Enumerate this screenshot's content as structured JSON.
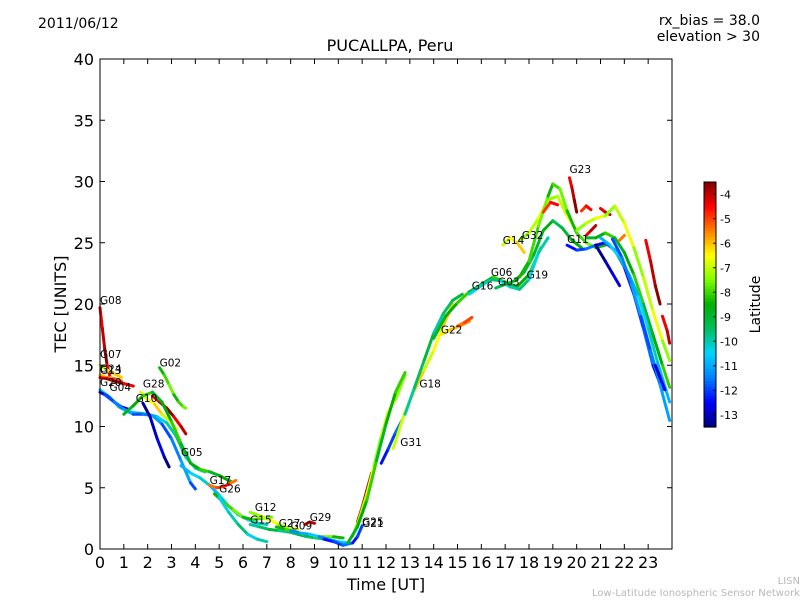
{
  "header": {
    "date": "2011/06/12",
    "rx_bias": "rx_bias = 38.0",
    "elevation": "elevation > 30"
  },
  "footer": {
    "line1": "LISN",
    "line2": "Low-Latitude Ionospheric Sensor Network"
  },
  "chart_data": {
    "type": "line",
    "title": "PUCALLPA, Peru",
    "xlabel": "Time [UT]",
    "ylabel": "TEC [UNITS]",
    "xlim": [
      0,
      24
    ],
    "ylim": [
      0,
      40
    ],
    "x_ticks": [
      "0",
      "1",
      "2",
      "3",
      "4",
      "5",
      "6",
      "7",
      "8",
      "9",
      "10",
      "11",
      "12",
      "13",
      "14",
      "15",
      "16",
      "17",
      "18",
      "19",
      "20",
      "21",
      "22",
      "23"
    ],
    "y_ticks": [
      "0",
      "5",
      "10",
      "15",
      "20",
      "25",
      "30",
      "35",
      "40"
    ],
    "colorbar": {
      "label": "Latitude",
      "range": [
        -13.5,
        -3.5
      ],
      "ticks": [
        "-4",
        "-5",
        "-6",
        "-7",
        "-8",
        "-9",
        "-10",
        "-11",
        "-12",
        "-13"
      ],
      "colors": [
        "#00007f",
        "#0000ff",
        "#0080ff",
        "#00d4ff",
        "#00c060",
        "#00b000",
        "#7fff00",
        "#ffff00",
        "#ff8000",
        "#ff0000",
        "#7f0000"
      ]
    },
    "satellite_labels": [
      {
        "name": "G08",
        "x": 0.0,
        "y": 20.0
      },
      {
        "name": "G07",
        "x": 0.0,
        "y": 15.6
      },
      {
        "name": "G24",
        "x": 0.0,
        "y": 14.4
      },
      {
        "name": "G13",
        "x": 0.0,
        "y": 14.3
      },
      {
        "name": "G20",
        "x": 0.0,
        "y": 13.3
      },
      {
        "name": "G04",
        "x": 0.4,
        "y": 12.9
      },
      {
        "name": "G28",
        "x": 1.8,
        "y": 13.2
      },
      {
        "name": "G10",
        "x": 1.5,
        "y": 12.0
      },
      {
        "name": "G02",
        "x": 2.5,
        "y": 14.9
      },
      {
        "name": "G05",
        "x": 3.4,
        "y": 7.6
      },
      {
        "name": "G17",
        "x": 4.6,
        "y": 5.3
      },
      {
        "name": "G26",
        "x": 5.0,
        "y": 4.6
      },
      {
        "name": "G12",
        "x": 6.5,
        "y": 3.1
      },
      {
        "name": "G15",
        "x": 6.3,
        "y": 2.1
      },
      {
        "name": "G27",
        "x": 7.5,
        "y": 1.8
      },
      {
        "name": "G09",
        "x": 8.0,
        "y": 1.6
      },
      {
        "name": "G29",
        "x": 8.8,
        "y": 2.3
      },
      {
        "name": "G25",
        "x": 11.0,
        "y": 1.9
      },
      {
        "name": "G21",
        "x": 11.0,
        "y": 1.8
      },
      {
        "name": "G31",
        "x": 12.6,
        "y": 8.4
      },
      {
        "name": "G18",
        "x": 13.4,
        "y": 13.2
      },
      {
        "name": "G22",
        "x": 14.3,
        "y": 17.6
      },
      {
        "name": "G16",
        "x": 15.6,
        "y": 21.2
      },
      {
        "name": "G06",
        "x": 16.4,
        "y": 22.3
      },
      {
        "name": "G03",
        "x": 16.7,
        "y": 21.5
      },
      {
        "name": "G14",
        "x": 16.9,
        "y": 24.9
      },
      {
        "name": "G32",
        "x": 17.7,
        "y": 25.3
      },
      {
        "name": "G19",
        "x": 17.9,
        "y": 22.1
      },
      {
        "name": "G11",
        "x": 19.6,
        "y": 25.0
      },
      {
        "name": "G23",
        "x": 19.7,
        "y": 30.7
      }
    ],
    "series": [
      {
        "name": "G08",
        "lat": -4.0,
        "x": [
          0.0,
          0.1,
          0.2,
          0.3,
          0.4
        ],
        "y": [
          19.7,
          18.0,
          16.3,
          15.0,
          14.2
        ]
      },
      {
        "name": "G07",
        "lat": -6.5,
        "x": [
          0.0,
          0.3,
          0.6,
          0.9
        ],
        "y": [
          15.0,
          14.6,
          14.3,
          14.0
        ]
      },
      {
        "name": "G24",
        "lat": -5.5,
        "x": [
          0.0,
          0.3,
          0.6,
          0.9
        ],
        "y": [
          14.2,
          14.0,
          13.9,
          13.7
        ]
      },
      {
        "name": "G13",
        "lat": -4.0,
        "x": [
          0.0,
          0.3,
          0.6,
          1.0,
          1.4
        ],
        "y": [
          14.0,
          13.9,
          13.7,
          13.5,
          13.3
        ]
      },
      {
        "name": "G20",
        "lat": -10.0,
        "x": [
          0.0,
          0.4,
          0.8,
          1.2,
          1.6,
          2.0,
          2.4,
          2.8,
          3.2,
          3.6,
          4.0,
          4.4
        ],
        "y": [
          13.0,
          12.4,
          11.6,
          11.2,
          11.1,
          11.0,
          10.8,
          10.3,
          9.2,
          7.5,
          6.6,
          6.3
        ]
      },
      {
        "name": "G04",
        "lat": -12.5,
        "x": [
          0.0,
          0.3,
          0.6,
          0.9,
          1.2
        ],
        "y": [
          12.8,
          12.5,
          12.0,
          11.6,
          11.4
        ]
      },
      {
        "name": "G28",
        "lat": -6.5,
        "x": [
          1.7,
          2.0,
          2.3,
          2.6,
          2.9,
          3.2
        ],
        "y": [
          12.8,
          12.2,
          11.8,
          11.0,
          10.5,
          9.8
        ]
      },
      {
        "name": "G28b",
        "lat": -4.0,
        "x": [
          2.2,
          2.5,
          2.8,
          3.1,
          3.4,
          3.6
        ],
        "y": [
          12.5,
          12.0,
          11.5,
          10.8,
          10.0,
          9.4
        ]
      },
      {
        "name": "G10",
        "lat": -11.5,
        "x": [
          0.2,
          0.6,
          1.0,
          1.4,
          1.8,
          2.2,
          2.6,
          3.0,
          3.4,
          3.8,
          4.0
        ],
        "y": [
          12.6,
          12.0,
          11.4,
          11.0,
          11.0,
          10.9,
          10.2,
          9.0,
          7.2,
          5.4,
          4.9
        ]
      },
      {
        "name": "G10b",
        "lat": -13.0,
        "x": [
          1.8,
          2.1,
          2.4,
          2.7,
          2.9
        ],
        "y": [
          11.9,
          10.8,
          9.0,
          7.5,
          6.7
        ]
      },
      {
        "name": "G02",
        "lat": -8.0,
        "x": [
          2.5,
          2.7,
          2.9,
          3.1,
          3.3,
          3.5,
          3.6
        ],
        "y": [
          14.8,
          14.2,
          13.4,
          12.6,
          12.0,
          11.6,
          11.5
        ]
      },
      {
        "name": "G02b",
        "lat": -8.5,
        "x": [
          1.0,
          1.4,
          1.8,
          2.2,
          2.6,
          3.0,
          3.4,
          3.8,
          4.2,
          4.6,
          5.0,
          5.5
        ],
        "y": [
          11.0,
          11.7,
          12.5,
          12.8,
          12.0,
          10.4,
          8.6,
          7.0,
          6.5,
          6.3,
          6.0,
          5.5
        ]
      },
      {
        "name": "G05",
        "lat": -10.5,
        "x": [
          3.4,
          3.8,
          4.2,
          4.6,
          5.0,
          5.4,
          5.8,
          6.2,
          6.6,
          7.0
        ],
        "y": [
          6.8,
          6.2,
          5.8,
          5.2,
          4.4,
          3.5,
          2.8,
          2.4,
          2.1,
          2.0
        ]
      },
      {
        "name": "G17",
        "lat": -5.0,
        "x": [
          4.6,
          4.9,
          5.2,
          5.5,
          5.7
        ],
        "y": [
          5.2,
          5.0,
          5.1,
          5.4,
          5.6
        ]
      },
      {
        "name": "G26",
        "lat": -8.0,
        "x": [
          4.8,
          5.2,
          5.6,
          6.0,
          6.4,
          6.8,
          7.2
        ],
        "y": [
          4.5,
          3.8,
          3.2,
          2.6,
          2.4,
          2.5,
          2.6
        ]
      },
      {
        "name": "G26b",
        "lat": -10.0,
        "x": [
          5.0,
          5.4,
          5.8,
          6.2,
          6.6,
          7.0
        ],
        "y": [
          4.2,
          3.0,
          2.0,
          1.2,
          0.8,
          0.6
        ]
      },
      {
        "name": "G12",
        "lat": -7.0,
        "x": [
          6.3,
          6.7,
          7.1,
          7.5,
          7.9,
          8.3
        ],
        "y": [
          3.0,
          2.7,
          2.4,
          2.0,
          1.7,
          1.6
        ]
      },
      {
        "name": "G15",
        "lat": -9.5,
        "x": [
          6.3,
          6.7,
          7.1,
          7.5,
          7.9,
          8.3,
          8.7,
          9.1,
          9.5
        ],
        "y": [
          2.0,
          1.8,
          1.6,
          1.5,
          1.4,
          1.2,
          1.0,
          0.9,
          0.8
        ]
      },
      {
        "name": "G27",
        "lat": -8.0,
        "x": [
          7.4,
          7.8,
          8.2,
          8.6,
          9.0,
          9.4,
          9.8,
          10.2
        ],
        "y": [
          1.8,
          1.6,
          1.4,
          1.2,
          1.0,
          1.0,
          1.0,
          0.9
        ]
      },
      {
        "name": "G09",
        "lat": -11.0,
        "x": [
          8.0,
          8.4,
          8.8,
          9.2,
          9.6,
          10.0,
          10.4
        ],
        "y": [
          1.5,
          1.3,
          1.2,
          1.0,
          0.8,
          0.6,
          0.5
        ]
      },
      {
        "name": "G29",
        "lat": -4.0,
        "x": [
          8.6,
          8.8,
          9.0
        ],
        "y": [
          2.0,
          2.2,
          2.1
        ]
      },
      {
        "name": "G25",
        "lat": -12.0,
        "x": [
          9.4,
          9.8,
          10.2,
          10.6,
          10.8,
          11.0
        ],
        "y": [
          0.8,
          0.6,
          0.3,
          0.5,
          1.0,
          1.9
        ]
      },
      {
        "name": "G21",
        "lat": -4.0,
        "x": [
          10.8,
          11.0,
          11.2,
          11.4
        ],
        "y": [
          2.2,
          3.4,
          4.8,
          6.2
        ]
      },
      {
        "name": "G21b",
        "lat": -7.0,
        "x": [
          10.6,
          10.9,
          11.2,
          11.5,
          11.8,
          12.1,
          12.4,
          12.8
        ],
        "y": [
          1.0,
          2.6,
          4.5,
          6.8,
          9.2,
          11.2,
          12.2,
          14.2
        ]
      },
      {
        "name": "G31",
        "lat": -8.5,
        "x": [
          10.4,
          10.8,
          11.2,
          11.6,
          12.0,
          12.4,
          12.8
        ],
        "y": [
          0.5,
          1.8,
          4.0,
          7.2,
          10.2,
          12.8,
          14.4
        ]
      },
      {
        "name": "G31b",
        "lat": -12.0,
        "x": [
          11.8,
          12.1,
          12.4,
          12.7
        ],
        "y": [
          7.0,
          8.2,
          9.5,
          10.6
        ]
      },
      {
        "name": "G18",
        "lat": -6.5,
        "x": [
          12.3,
          12.8,
          13.2,
          13.6,
          14.0,
          14.4,
          14.8
        ],
        "y": [
          8.2,
          11.2,
          13.0,
          14.6,
          16.2,
          18.2,
          20.0
        ]
      },
      {
        "name": "G18b",
        "lat": -9.5,
        "x": [
          12.8,
          13.2,
          13.6,
          14.0,
          14.4,
          14.8,
          15.2
        ],
        "y": [
          11.0,
          13.2,
          15.4,
          17.6,
          19.2,
          20.3,
          20.8
        ]
      },
      {
        "name": "G22",
        "lat": -6.0,
        "x": [
          14.3,
          14.7,
          15.1,
          15.5
        ],
        "y": [
          17.5,
          17.9,
          18.2,
          18.6
        ]
      },
      {
        "name": "G22b",
        "lat": -5.0,
        "x": [
          15.0,
          15.3,
          15.6
        ],
        "y": [
          18.2,
          18.5,
          18.9
        ]
      },
      {
        "name": "G16",
        "lat": -8.5,
        "x": [
          14.0,
          14.5,
          15.0,
          15.5,
          16.0,
          16.5,
          17.0,
          17.5,
          18.0,
          18.5
        ],
        "y": [
          17.2,
          19.0,
          20.1,
          21.0,
          21.6,
          22.2,
          21.8,
          21.4,
          22.4,
          24.6
        ]
      },
      {
        "name": "G06",
        "lat": -10.0,
        "x": [
          15.5,
          16.0,
          16.4,
          16.8,
          17.2,
          17.6,
          18.0,
          18.4,
          18.8
        ],
        "y": [
          20.8,
          21.5,
          22.0,
          21.9,
          21.4,
          21.2,
          22.0,
          24.2,
          25.4
        ]
      },
      {
        "name": "G03",
        "lat": -9.0,
        "x": [
          16.6,
          17.0,
          17.4,
          17.8,
          18.2,
          18.6,
          19.0,
          19.4,
          19.8,
          20.2
        ],
        "y": [
          21.3,
          21.6,
          21.9,
          22.6,
          24.0,
          26.0,
          26.8,
          26.2,
          25.2,
          24.6
        ]
      },
      {
        "name": "G14",
        "lat": -6.5,
        "x": [
          16.9,
          17.2,
          17.5,
          17.8
        ],
        "y": [
          24.8,
          25.4,
          25.0,
          24.2
        ]
      },
      {
        "name": "G32",
        "lat": -7.0,
        "x": [
          17.6,
          18.0,
          18.4,
          18.8,
          19.2,
          19.6,
          20.0
        ],
        "y": [
          25.2,
          25.8,
          27.0,
          28.5,
          28.8,
          27.2,
          26.0
        ]
      },
      {
        "name": "G19",
        "lat": -8.0,
        "x": [
          17.6,
          18.0,
          18.4,
          18.8,
          19.0,
          19.3,
          19.6,
          20.0,
          20.4,
          20.8,
          21.2
        ],
        "y": [
          22.2,
          23.5,
          26.4,
          28.8,
          29.8,
          29.4,
          27.6,
          25.8,
          25.0,
          24.6,
          24.8
        ]
      },
      {
        "name": "G19b",
        "lat": -4.5,
        "x": [
          18.6,
          18.9,
          19.2
        ],
        "y": [
          27.5,
          28.3,
          28.1
        ]
      },
      {
        "name": "G11",
        "lat": -12.0,
        "x": [
          19.6,
          20.0,
          20.4,
          20.8,
          21.2,
          21.6,
          22.0,
          22.4,
          22.8,
          23.2,
          23.6
        ],
        "y": [
          24.8,
          24.4,
          24.5,
          24.8,
          25.0,
          24.4,
          23.0,
          20.8,
          18.0,
          15.0,
          13.0
        ]
      },
      {
        "name": "G11b",
        "lat": -13.0,
        "x": [
          20.8,
          21.2,
          21.5,
          21.8
        ],
        "y": [
          24.8,
          23.5,
          22.5,
          21.5
        ]
      },
      {
        "name": "G23",
        "lat": -4.0,
        "x": [
          19.7,
          19.8,
          19.9,
          20.0
        ],
        "y": [
          30.3,
          29.5,
          28.5,
          27.5
        ]
      },
      {
        "name": "G23b",
        "lat": -4.5,
        "x": [
          20.2,
          20.4,
          20.6
        ],
        "y": [
          27.6,
          28.0,
          27.7
        ]
      },
      {
        "name": "G23c",
        "lat": -4.0,
        "x": [
          21.0,
          21.2,
          21.4
        ],
        "y": [
          27.8,
          27.5,
          27.3
        ]
      },
      {
        "name": "G23d",
        "lat": -4.0,
        "x": [
          20.4,
          20.6,
          20.8
        ],
        "y": [
          25.6,
          26.0,
          26.4
        ]
      },
      {
        "name": "G01",
        "lat": -7.0,
        "x": [
          20.0,
          20.4,
          20.8,
          21.2,
          21.6,
          22.0,
          22.4,
          22.8,
          23.2,
          23.6,
          23.9
        ],
        "y": [
          26.0,
          26.6,
          27.0,
          27.2,
          28.0,
          26.6,
          24.6,
          22.2,
          19.4,
          17.0,
          15.4
        ]
      },
      {
        "name": "G01b",
        "lat": -8.5,
        "x": [
          20.4,
          20.8,
          21.2,
          21.6,
          22.0,
          22.4,
          22.8,
          23.2,
          23.6,
          23.9
        ],
        "y": [
          25.4,
          25.4,
          25.8,
          25.4,
          24.2,
          22.4,
          20.0,
          17.5,
          15.0,
          13.2
        ]
      },
      {
        "name": "G01c",
        "lat": -10.5,
        "x": [
          21.0,
          21.4,
          21.8,
          22.2,
          22.6,
          23.0,
          23.4,
          23.9
        ],
        "y": [
          25.4,
          24.8,
          23.8,
          22.4,
          20.6,
          18.0,
          15.2,
          12.0
        ]
      },
      {
        "name": "G01d",
        "lat": -11.5,
        "x": [
          21.5,
          21.9,
          22.3,
          22.7,
          23.1,
          23.5,
          23.9
        ],
        "y": [
          25.3,
          23.8,
          21.6,
          19.0,
          16.2,
          13.4,
          10.5
        ]
      },
      {
        "name": "G30",
        "lat": -4.0,
        "x": [
          22.9,
          23.1,
          23.3,
          23.5
        ],
        "y": [
          25.2,
          23.5,
          21.5,
          20.0
        ]
      },
      {
        "name": "G30b",
        "lat": -4.0,
        "x": [
          23.6,
          23.8,
          23.9
        ],
        "y": [
          19.0,
          17.8,
          16.8
        ]
      },
      {
        "name": "G30c",
        "lat": -5.0,
        "x": [
          21.8,
          22.0
        ],
        "y": [
          25.2,
          25.6
        ]
      },
      {
        "name": "G30d",
        "lat": -12.5,
        "x": [
          23.3,
          23.5,
          23.7
        ],
        "y": [
          15.0,
          14.0,
          13.0
        ]
      }
    ]
  }
}
